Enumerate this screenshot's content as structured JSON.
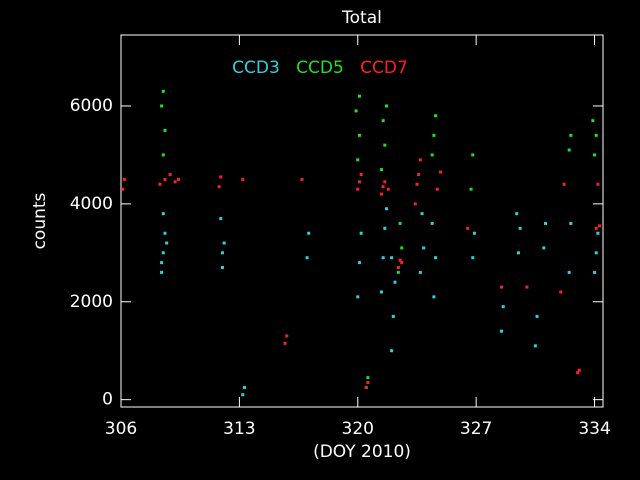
{
  "chart_data": {
    "type": "scatter",
    "title": "Total",
    "xlabel": "(DOY 2010)",
    "ylabel": "counts",
    "xlim": [
      306,
      334.5
    ],
    "ylim": [
      -150,
      7450
    ],
    "xticks": [
      306,
      313,
      320,
      327,
      334
    ],
    "yticks": [
      0,
      2000,
      4000,
      6000
    ],
    "series": [
      {
        "name": "CCD3",
        "color": "#30d0e0",
        "x": [
          308.4,
          308.5,
          308.6,
          308.5,
          308.7,
          308.4,
          312.0,
          312.1,
          311.9,
          312.0,
          313.2,
          313.3,
          317.0,
          317.1,
          320.0,
          320.1,
          320.2,
          321.4,
          321.5,
          321.6,
          321.7,
          322.0,
          322.1,
          322.2,
          322.0,
          323.7,
          323.9,
          323.8,
          324.5,
          324.6,
          324.4,
          326.8,
          326.9,
          328.5,
          328.6,
          329.5,
          329.6,
          329.4,
          330.5,
          330.6,
          331.0,
          331.1,
          332.5,
          332.6,
          334.0,
          334.1,
          334.2
        ],
        "values": [
          2600,
          3000,
          3400,
          3800,
          3200,
          2800,
          2700,
          3200,
          3700,
          3000,
          100,
          250,
          2900,
          3400,
          2100,
          2800,
          3400,
          2200,
          2900,
          3500,
          3900,
          1000,
          1700,
          2400,
          2900,
          2600,
          3100,
          3800,
          2100,
          2900,
          3600,
          2900,
          3400,
          1400,
          1900,
          3000,
          3500,
          3800,
          1100,
          1700,
          3100,
          3600,
          2600,
          3600,
          2600,
          3000,
          3400
        ]
      },
      {
        "name": "CCD5",
        "color": "#20e020",
        "x": [
          308.5,
          308.6,
          308.4,
          308.5,
          320.0,
          320.1,
          319.9,
          320.1,
          320.5,
          320.6,
          321.4,
          321.6,
          321.5,
          321.7,
          322.4,
          322.6,
          322.5,
          324.4,
          324.5,
          324.6,
          326.7,
          326.8,
          332.5,
          332.6,
          334.0,
          334.1,
          333.9
        ],
        "values": [
          5000,
          5500,
          6000,
          6300,
          4900,
          5400,
          5900,
          6200,
          250,
          450,
          4700,
          5200,
          5700,
          6000,
          2600,
          3100,
          3600,
          5000,
          5400,
          5800,
          4300,
          5000,
          5100,
          5400,
          5000,
          5400,
          5700
        ]
      },
      {
        "name": "CCD7",
        "color": "#ff2020",
        "x": [
          306.1,
          306.2,
          308.3,
          308.6,
          308.9,
          309.2,
          309.4,
          311.8,
          311.9,
          313.2,
          316.7,
          315.7,
          315.8,
          320.0,
          320.1,
          320.2,
          320.5,
          320.6,
          321.4,
          321.5,
          321.6,
          321.8,
          322.4,
          322.5,
          322.6,
          323.4,
          323.5,
          323.7,
          323.6,
          324.7,
          324.9,
          326.5,
          328.5,
          330.0,
          332.0,
          332.2,
          333.0,
          333.1,
          334.1,
          334.3,
          334.2
        ],
        "values": [
          4300,
          4500,
          4400,
          4500,
          4600,
          4450,
          4500,
          4350,
          4550,
          4500,
          4500,
          1150,
          1300,
          4300,
          4450,
          4600,
          250,
          350,
          4200,
          4350,
          4450,
          4300,
          2700,
          2850,
          2800,
          4000,
          4400,
          4900,
          4600,
          4300,
          4650,
          3500,
          2300,
          2300,
          2200,
          4400,
          550,
          600,
          3500,
          3550,
          4400
        ]
      }
    ]
  }
}
